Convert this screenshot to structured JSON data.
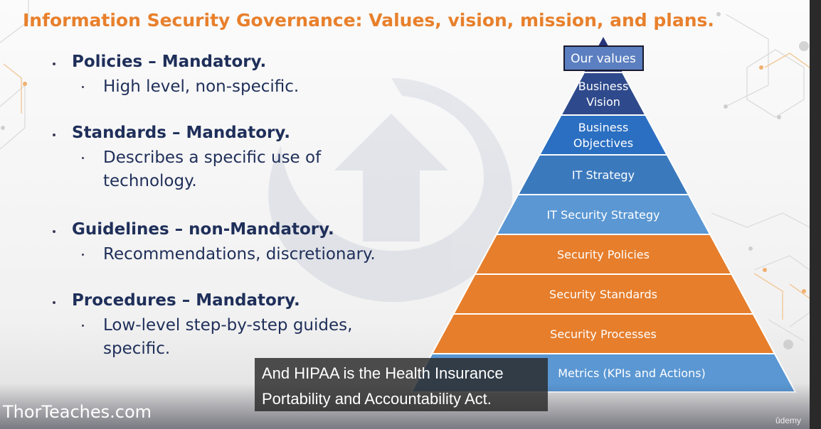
{
  "slide": {
    "title": "Information Security Governance: Values, vision, mission, and plans.",
    "bullets": [
      {
        "head": "Policies – Mandatory.",
        "sub": "High level, non-specific."
      },
      {
        "head": "Standards – Mandatory.",
        "sub": "Describes a specific use of technology."
      },
      {
        "head": "Guidelines – non-Mandatory.",
        "sub": "Recommendations, discretionary."
      },
      {
        "head": "Procedures – Mandatory.",
        "sub": " Low-level step-by-step guides, specific."
      }
    ],
    "pyramid": {
      "top_label": "Our values",
      "levels": [
        {
          "lines": [
            "Business",
            "Vision"
          ],
          "color": "#2e4a8c"
        },
        {
          "lines": [
            "Business",
            "Objectives"
          ],
          "color": "#2a6fc2"
        },
        {
          "lines": [
            "IT Strategy"
          ],
          "color": "#3b79bd"
        },
        {
          "lines": [
            "IT Security Strategy"
          ],
          "color": "#5a97d3"
        },
        {
          "lines": [
            "Security Policies"
          ],
          "color": "#e67e2c"
        },
        {
          "lines": [
            "Security Standards"
          ],
          "color": "#e67e2c"
        },
        {
          "lines": [
            "Security Processes"
          ],
          "color": "#e67e2c"
        },
        {
          "lines": [
            "Metrics (KPIs and Actions)"
          ],
          "color": "#5a97d3"
        }
      ],
      "apex_color": "#26347a"
    },
    "footer": "ThorTeaches.com"
  },
  "caption": {
    "lines": [
      "And HIPAA is the Health Insurance",
      "Portability and Accountability Act."
    ]
  },
  "brand": "ûdemy",
  "colors": {
    "title": "#e8802c",
    "text": "#1f2f5a",
    "orange": "#e67e2c",
    "blue": "#5a97d3"
  }
}
